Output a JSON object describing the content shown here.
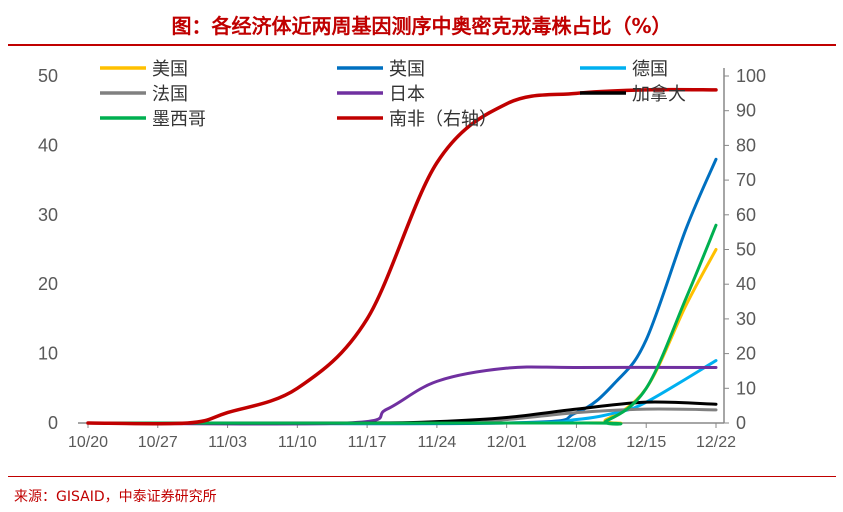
{
  "title": "图：各经济体近两周基因测序中奥密克戎毒株占比（%）",
  "source": "来源：GISAID，中泰证券研究所",
  "chart_data": {
    "type": "line",
    "title": "图：各经济体近两周基因测序中奥密克戎毒株占比（%）",
    "x_ticks": [
      "10/20",
      "10/27",
      "11/03",
      "11/10",
      "11/17",
      "11/24",
      "12/01",
      "12/08",
      "12/15",
      "12/22"
    ],
    "x_unit": "days since 10/20",
    "ylim_left": [
      0,
      50
    ],
    "ylim_right": [
      0,
      100
    ],
    "y_ticks_left": [
      0,
      10,
      20,
      30,
      40,
      50
    ],
    "y_ticks_right": [
      0,
      10,
      20,
      30,
      40,
      50,
      60,
      70,
      80,
      90,
      100
    ],
    "legend_position": "top",
    "series": [
      {
        "name": "美国",
        "color": "#ffc000",
        "axis": "left",
        "points": [
          [
            0,
            0
          ],
          [
            49,
            0
          ],
          [
            52,
            0.5
          ],
          [
            56,
            5
          ],
          [
            60,
            17
          ],
          [
            63,
            25
          ]
        ]
      },
      {
        "name": "英国",
        "color": "#0070c0",
        "axis": "left",
        "points": [
          [
            0,
            0
          ],
          [
            42,
            0
          ],
          [
            49,
            1.5
          ],
          [
            53,
            6
          ],
          [
            56,
            12
          ],
          [
            60,
            28
          ],
          [
            63,
            38
          ]
        ]
      },
      {
        "name": "德国",
        "color": "#00b0f0",
        "axis": "left",
        "points": [
          [
            0,
            0
          ],
          [
            42,
            0
          ],
          [
            49,
            0.5
          ],
          [
            53,
            1.5
          ],
          [
            56,
            3
          ],
          [
            63,
            9
          ]
        ]
      },
      {
        "name": "法国",
        "color": "#808080",
        "axis": "left",
        "points": [
          [
            0,
            0
          ],
          [
            35,
            0
          ],
          [
            42,
            0.5
          ],
          [
            49,
            1.5
          ],
          [
            56,
            2
          ],
          [
            63,
            1.9
          ]
        ]
      },
      {
        "name": "日本",
        "color": "#7030a0",
        "axis": "left",
        "points": [
          [
            0,
            0
          ],
          [
            26,
            0
          ],
          [
            30,
            2
          ],
          [
            35,
            6
          ],
          [
            42,
            7.9
          ],
          [
            49,
            8
          ],
          [
            63,
            8
          ]
        ]
      },
      {
        "name": "加拿大",
        "color": "#000000",
        "axis": "left",
        "points": [
          [
            0,
            0
          ],
          [
            28,
            0
          ],
          [
            35,
            0.2
          ],
          [
            42,
            0.8
          ],
          [
            49,
            2
          ],
          [
            56,
            3
          ],
          [
            63,
            2.7
          ]
        ]
      },
      {
        "name": "墨西哥",
        "color": "#00b050",
        "axis": "left",
        "points": [
          [
            0,
            0
          ],
          [
            49,
            0
          ],
          [
            52,
            0.3
          ],
          [
            56,
            5
          ],
          [
            60,
            18
          ],
          [
            63,
            28.5
          ]
        ]
      },
      {
        "name": "南非（右轴）",
        "color": "#c00000",
        "axis": "right",
        "points": [
          [
            0,
            0
          ],
          [
            10,
            0
          ],
          [
            14,
            3
          ],
          [
            21,
            10
          ],
          [
            28,
            30
          ],
          [
            35,
            75
          ],
          [
            42,
            92
          ],
          [
            49,
            95
          ],
          [
            56,
            96
          ],
          [
            63,
            96
          ]
        ]
      }
    ]
  }
}
